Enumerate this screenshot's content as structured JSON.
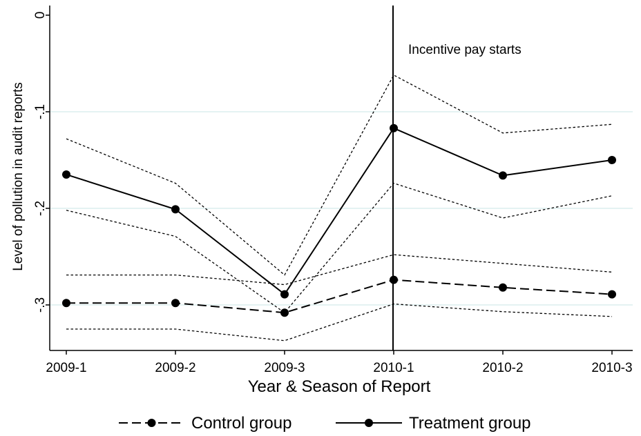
{
  "chart_data": {
    "type": "line",
    "categories": [
      "2009-1",
      "2009-2",
      "2009-3",
      "2010-1",
      "2010-2",
      "2010-3"
    ],
    "xlabel": "Year & Season of Report",
    "ylabel": "Level of pollution in audit reports",
    "ylim": [
      -0.35,
      0.0
    ],
    "yticks": [
      0,
      -0.1,
      -0.2,
      -0.3
    ],
    "ytick_labels": [
      "0",
      "-.1",
      "-.2",
      "-.3"
    ],
    "grid": true,
    "vertical_line": {
      "category": "2010-1",
      "label": "Incentive pay starts"
    },
    "series": [
      {
        "name": "Control group",
        "style": "dashed",
        "values": [
          -0.298,
          -0.298,
          -0.308,
          -0.274,
          -0.282,
          -0.289
        ],
        "ci_upper": [
          -0.269,
          -0.269,
          -0.279,
          -0.248,
          -0.257,
          -0.266
        ],
        "ci_lower": [
          -0.325,
          -0.325,
          -0.337,
          -0.299,
          -0.307,
          -0.312
        ]
      },
      {
        "name": "Treatment group",
        "style": "solid",
        "values": [
          -0.165,
          -0.201,
          -0.289,
          -0.117,
          -0.166,
          -0.15
        ],
        "ci_upper": [
          -0.128,
          -0.174,
          -0.269,
          -0.062,
          -0.122,
          -0.113
        ],
        "ci_lower": [
          -0.202,
          -0.229,
          -0.308,
          -0.174,
          -0.21,
          -0.187
        ]
      }
    ],
    "legend": {
      "placement": "bottom"
    }
  },
  "colors": {
    "grid": "#dceeee",
    "ink": "#000000"
  }
}
